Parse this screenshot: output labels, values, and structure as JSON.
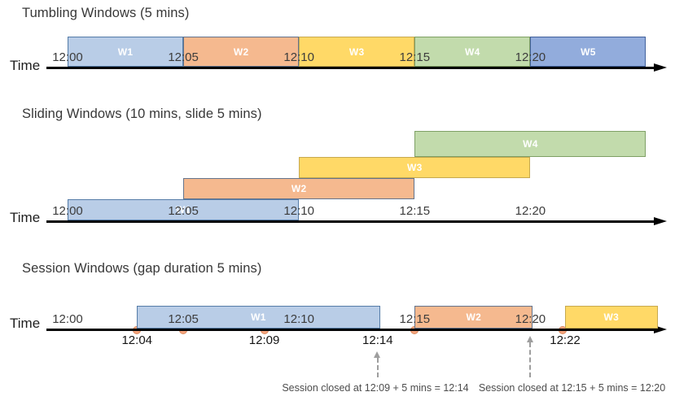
{
  "palette": {
    "w_blue_light": {
      "fill": "#B9CDE7",
      "border": "#557CA8"
    },
    "w_orange": {
      "fill": "#F5B98F",
      "border": "#64748C"
    },
    "w_yellow": {
      "fill": "#FFD967",
      "border": "#C7A94F"
    },
    "w_green": {
      "fill": "#C2DBAC",
      "border": "#7FA065"
    },
    "w_blue_med": {
      "fill": "#92ACDC",
      "border": "#41619C"
    },
    "event_dot": {
      "fill": "#F4A47D",
      "border": "#DB8A5F"
    },
    "axis": "#000000",
    "annotation_gray": "#9E9E9E"
  },
  "sections": [
    {
      "id": "tumbling",
      "title": "Tumbling Windows (5 mins)",
      "time_axis_label": "Time",
      "ticks": [
        {
          "label": "12:00",
          "min": 0
        },
        {
          "label": "12:05",
          "min": 5
        },
        {
          "label": "12:10",
          "min": 10
        },
        {
          "label": "12:15",
          "min": 15
        },
        {
          "label": "12:20",
          "min": 20
        }
      ],
      "windows": [
        {
          "label": "W1",
          "start_min": 0,
          "end_min": 5,
          "color": "w_blue_light",
          "row": 0
        },
        {
          "label": "W2",
          "start_min": 5,
          "end_min": 10,
          "color": "w_orange",
          "row": 0
        },
        {
          "label": "W3",
          "start_min": 10,
          "end_min": 15,
          "color": "w_yellow",
          "row": 0
        },
        {
          "label": "W4",
          "start_min": 15,
          "end_min": 20,
          "color": "w_green",
          "row": 0
        },
        {
          "label": "W5",
          "start_min": 20,
          "end_min": 25,
          "color": "w_blue_med",
          "row": 0
        }
      ]
    },
    {
      "id": "sliding",
      "title": "Sliding Windows (10 mins, slide 5 mins)",
      "time_axis_label": "Time",
      "ticks": [
        {
          "label": "12:00",
          "min": 0
        },
        {
          "label": "12:05",
          "min": 5
        },
        {
          "label": "12:10",
          "min": 10
        },
        {
          "label": "12:15",
          "min": 15
        },
        {
          "label": "12:20",
          "min": 20
        }
      ],
      "windows": [
        {
          "label": "W1",
          "start_min": 0,
          "end_min": 10,
          "color": "w_blue_light",
          "row": 0
        },
        {
          "label": "W2",
          "start_min": 5,
          "end_min": 15,
          "color": "w_orange",
          "row": 1
        },
        {
          "label": "W3",
          "start_min": 10,
          "end_min": 20,
          "color": "w_yellow",
          "row": 2
        },
        {
          "label": "W4",
          "start_min": 15,
          "end_min": 25,
          "color": "w_green",
          "row": 3
        }
      ]
    },
    {
      "id": "session",
      "title": "Session Windows (gap duration 5 mins)",
      "time_axis_label": "Time",
      "ticks": [
        {
          "label": "12:00",
          "min": 0
        },
        {
          "label": "12:05",
          "min": 5
        },
        {
          "label": "12:10",
          "min": 10
        },
        {
          "label": "12:15",
          "min": 15
        },
        {
          "label": "12:20",
          "min": 20
        }
      ],
      "windows": [
        {
          "label": "W1",
          "start_min": 3,
          "end_min": 13.5,
          "color": "w_blue_light",
          "row": 0
        },
        {
          "label": "W2",
          "start_min": 15,
          "end_min": 20.1,
          "color": "w_orange",
          "row": 0
        },
        {
          "label": "W3",
          "start_min": 21.5,
          "end_min": 25.5,
          "color": "w_yellow",
          "row": 0
        }
      ],
      "event_dots": [
        {
          "min": 3
        },
        {
          "min": 5
        },
        {
          "min": 8.5
        },
        {
          "min": 15
        },
        {
          "min": 21.4
        }
      ],
      "event_labels": [
        {
          "label": "12:04",
          "min": 3
        },
        {
          "label": "12:09",
          "min": 8.5
        },
        {
          "label": "12:14",
          "min": 13.4
        },
        {
          "label": "12:22",
          "min": 21.5
        }
      ],
      "closure_annotations": [
        {
          "text": "Session closed at 12:09 + 5 mins = 12:14",
          "arrow_min": 13.4,
          "text_center_min": 13.3
        },
        {
          "text": "Session closed at 12:15 + 5 mins = 12:20",
          "arrow_min": 20,
          "text_center_min": 21.8
        }
      ]
    }
  ]
}
